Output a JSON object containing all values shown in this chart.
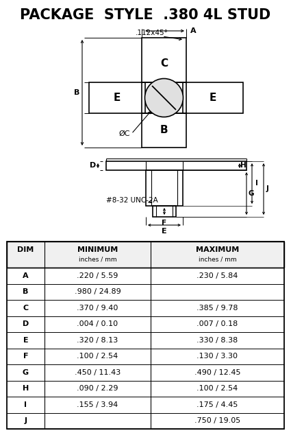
{
  "title": "PACKAGE  STYLE  .380 4L STUD",
  "title_fontsize": 15,
  "background_color": "#ffffff",
  "table_headers_line1": [
    "DIM",
    "MINIMUM",
    "MAXIMUM"
  ],
  "table_headers_line2": [
    "",
    "inches / mm",
    "inches / mm"
  ],
  "table_rows": [
    [
      "A",
      ".220 / 5.59",
      ".230 / 5.84"
    ],
    [
      "B",
      ".980 / 24.89",
      ""
    ],
    [
      "C",
      ".370 / 9.40",
      ".385 / 9.78"
    ],
    [
      "D",
      ".004 / 0.10",
      ".007 / 0.18"
    ],
    [
      "E",
      ".320 / 8.13",
      ".330 / 8.38"
    ],
    [
      "F",
      ".100 / 2.54",
      ".130 / 3.30"
    ],
    [
      "G",
      ".450 / 11.43",
      ".490 / 12.45"
    ],
    [
      "H",
      ".090 / 2.29",
      ".100 / 2.54"
    ],
    [
      "I",
      ".155 / 3.94",
      ".175 / 4.45"
    ],
    [
      "J",
      "",
      ".750 / 19.05"
    ]
  ],
  "line_color": "#000000",
  "text_color": "#000000",
  "annotation": ".112x45°",
  "thread_label": "#8-32 UNC-2A"
}
